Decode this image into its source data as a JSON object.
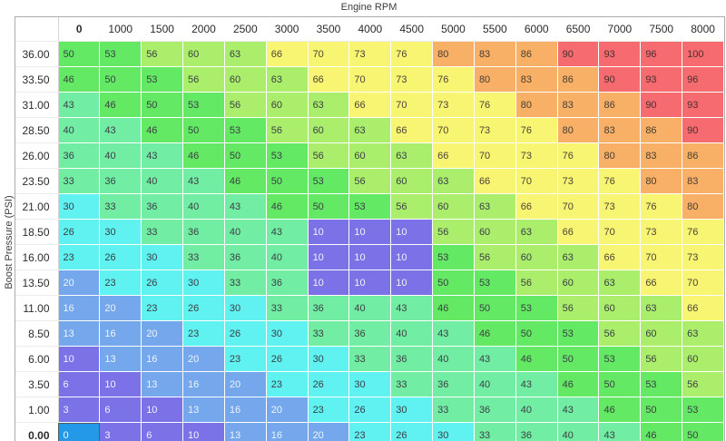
{
  "chart_data": {
    "type": "heatmap",
    "title": "Engine RPM",
    "ylabel": "Boost Pressure (PSI)",
    "columns": [
      "0",
      "1000",
      "1500",
      "2000",
      "2500",
      "3000",
      "3500",
      "4000",
      "4500",
      "5000",
      "5500",
      "6000",
      "6500",
      "7000",
      "7500",
      "8000"
    ],
    "rows": [
      "36.00",
      "33.50",
      "31.00",
      "28.50",
      "26.00",
      "23.50",
      "21.00",
      "18.50",
      "16.00",
      "13.50",
      "11.00",
      "8.50",
      "6.00",
      "3.50",
      "1.00",
      "0.00"
    ],
    "matrix": [
      [
        50,
        53,
        56,
        60,
        63,
        66,
        70,
        73,
        76,
        80,
        83,
        86,
        90,
        93,
        96,
        100
      ],
      [
        46,
        50,
        53,
        56,
        60,
        63,
        66,
        70,
        73,
        76,
        80,
        83,
        86,
        90,
        93,
        96
      ],
      [
        43,
        46,
        50,
        53,
        56,
        60,
        63,
        66,
        70,
        73,
        76,
        80,
        83,
        86,
        90,
        93
      ],
      [
        40,
        43,
        46,
        50,
        53,
        56,
        60,
        63,
        66,
        70,
        73,
        76,
        80,
        83,
        86,
        90
      ],
      [
        36,
        40,
        43,
        46,
        50,
        53,
        56,
        60,
        63,
        66,
        70,
        73,
        76,
        80,
        83,
        86
      ],
      [
        33,
        36,
        40,
        43,
        46,
        50,
        53,
        56,
        60,
        63,
        66,
        70,
        73,
        76,
        80,
        83
      ],
      [
        30,
        33,
        36,
        40,
        43,
        46,
        50,
        53,
        56,
        60,
        63,
        66,
        70,
        73,
        76,
        80
      ],
      [
        26,
        30,
        33,
        36,
        40,
        43,
        10,
        10,
        10,
        56,
        60,
        63,
        66,
        70,
        73,
        76
      ],
      [
        23,
        26,
        30,
        33,
        36,
        40,
        10,
        10,
        10,
        53,
        56,
        60,
        63,
        66,
        70,
        73
      ],
      [
        20,
        23,
        26,
        30,
        33,
        36,
        10,
        10,
        10,
        50,
        53,
        56,
        60,
        63,
        66,
        70
      ],
      [
        16,
        20,
        23,
        26,
        30,
        33,
        36,
        40,
        43,
        46,
        50,
        53,
        56,
        60,
        63,
        66
      ],
      [
        13,
        16,
        20,
        23,
        26,
        30,
        33,
        36,
        40,
        43,
        46,
        50,
        53,
        56,
        60,
        63
      ],
      [
        10,
        13,
        16,
        20,
        23,
        26,
        30,
        33,
        36,
        40,
        43,
        46,
        50,
        53,
        56,
        60
      ],
      [
        6,
        10,
        13,
        16,
        20,
        23,
        26,
        30,
        33,
        36,
        40,
        43,
        46,
        50,
        53,
        56
      ],
      [
        3,
        6,
        10,
        13,
        16,
        20,
        23,
        26,
        30,
        33,
        36,
        40,
        43,
        46,
        50,
        53
      ],
      [
        0,
        3,
        6,
        10,
        13,
        16,
        20,
        23,
        26,
        30,
        33,
        36,
        40,
        43,
        46,
        50
      ]
    ],
    "selected_cell": {
      "row": "0.00",
      "column": "0",
      "value": 0
    },
    "color_scale": [
      {
        "max": 10,
        "bg": "#7b72e8",
        "text": "#f2f2fa"
      },
      {
        "max": 20,
        "bg": "#74a7ec",
        "text": "#eef4fb"
      },
      {
        "max": 30,
        "bg": "#60f1f1",
        "text": "#3b4045"
      },
      {
        "max": 43,
        "bg": "#72eda4",
        "text": "#3b4045"
      },
      {
        "max": 53,
        "bg": "#63e963",
        "text": "#3b4045"
      },
      {
        "max": 63,
        "bg": "#abee6b",
        "text": "#3b4045"
      },
      {
        "max": 76,
        "bg": "#f8f572",
        "text": "#4a4438"
      },
      {
        "max": 86,
        "bg": "#f8b066",
        "text": "#4a3d30"
      },
      {
        "max": 100,
        "bg": "#f56b6f",
        "text": "#4a2f30"
      }
    ],
    "selection_bg": "#2499e8",
    "selection_text": "#f2f7fb",
    "legend": "off",
    "grid": "dashed-white"
  }
}
